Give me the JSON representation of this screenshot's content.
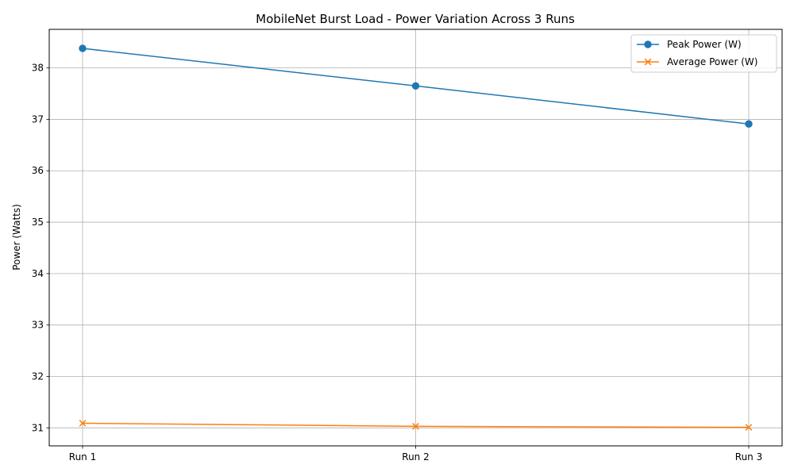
{
  "chart_data": {
    "type": "line",
    "title": "MobileNet Burst Load - Power Variation Across 3 Runs",
    "xlabel": "",
    "ylabel": "Power (Watts)",
    "categories": [
      "Run 1",
      "Run 2",
      "Run 3"
    ],
    "ylim": [
      30.65,
      38.75
    ],
    "yticks": [
      31,
      32,
      33,
      34,
      35,
      36,
      37,
      38
    ],
    "grid": true,
    "legend_position": "top-right",
    "series": [
      {
        "name": "Peak Power (W)",
        "values": [
          38.38,
          37.65,
          36.91
        ],
        "color": "#1f77b4",
        "marker": "circle"
      },
      {
        "name": "Average Power (W)",
        "values": [
          31.09,
          31.03,
          31.01
        ],
        "color": "#ff7f0e",
        "marker": "x"
      }
    ]
  }
}
